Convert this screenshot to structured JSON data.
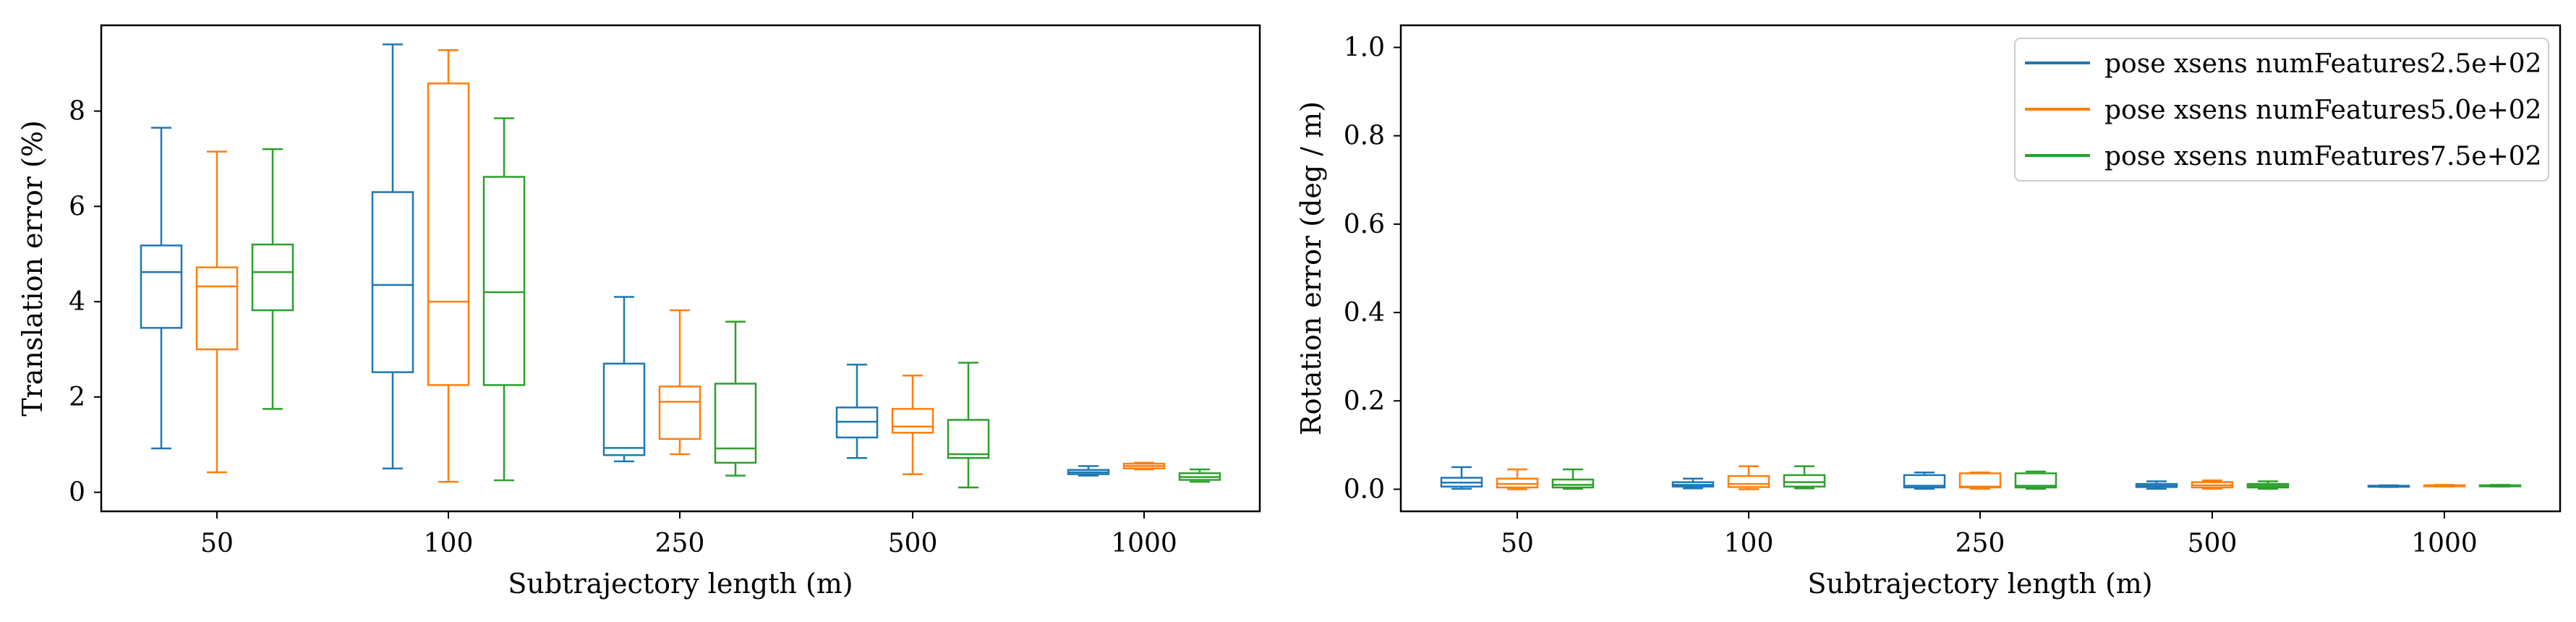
{
  "chart_data": [
    {
      "type": "box",
      "title": "",
      "xlabel": "Subtrajectory length (m)",
      "ylabel": "Translation error (%)",
      "categories": [
        "50",
        "100",
        "250",
        "500",
        "1000"
      ],
      "ylim": [
        -0.4,
        9.8
      ],
      "yticks": [
        0,
        2,
        4,
        6,
        8
      ],
      "grid": false,
      "series": [
        {
          "name": "pose xsens numFeatures2.5e+02",
          "color": "#1f77b4",
          "boxes": [
            {
              "whislo": 0.92,
              "q1": 3.45,
              "med": 4.62,
              "q3": 5.18,
              "whishi": 7.65
            },
            {
              "whislo": 0.5,
              "q1": 2.52,
              "med": 4.35,
              "q3": 6.3,
              "whishi": 9.4
            },
            {
              "whislo": 0.65,
              "q1": 0.78,
              "med": 0.93,
              "q3": 2.7,
              "whishi": 4.1
            },
            {
              "whislo": 0.72,
              "q1": 1.15,
              "med": 1.48,
              "q3": 1.78,
              "whishi": 2.68
            },
            {
              "whislo": 0.35,
              "q1": 0.38,
              "med": 0.42,
              "q3": 0.47,
              "whishi": 0.55
            }
          ]
        },
        {
          "name": "pose xsens numFeatures5.0e+02",
          "color": "#ff7f0e",
          "boxes": [
            {
              "whislo": 0.42,
              "q1": 3.0,
              "med": 4.32,
              "q3": 4.72,
              "whishi": 7.15
            },
            {
              "whislo": 0.22,
              "q1": 2.25,
              "med": 4.0,
              "q3": 8.58,
              "whishi": 9.28
            },
            {
              "whislo": 0.8,
              "q1": 1.12,
              "med": 1.9,
              "q3": 2.22,
              "whishi": 3.82
            },
            {
              "whislo": 0.38,
              "q1": 1.25,
              "med": 1.38,
              "q3": 1.75,
              "whishi": 2.45
            },
            {
              "whislo": 0.48,
              "q1": 0.5,
              "med": 0.55,
              "q3": 0.6,
              "whishi": 0.62
            }
          ]
        },
        {
          "name": "pose xsens numFeatures7.5e+02",
          "color": "#2ca02c",
          "boxes": [
            {
              "whislo": 1.75,
              "q1": 3.82,
              "med": 4.62,
              "q3": 5.2,
              "whishi": 7.2
            },
            {
              "whislo": 0.25,
              "q1": 2.25,
              "med": 4.2,
              "q3": 6.62,
              "whishi": 7.85
            },
            {
              "whislo": 0.35,
              "q1": 0.62,
              "med": 0.92,
              "q3": 2.28,
              "whishi": 3.58
            },
            {
              "whislo": 0.1,
              "q1": 0.72,
              "med": 0.8,
              "q3": 1.52,
              "whishi": 2.72
            },
            {
              "whislo": 0.22,
              "q1": 0.26,
              "med": 0.32,
              "q3": 0.4,
              "whishi": 0.48
            }
          ]
        }
      ]
    },
    {
      "type": "box",
      "title": "",
      "xlabel": "Subtrajectory length (m)",
      "ylabel": "Rotation error (deg / m)",
      "categories": [
        "50",
        "100",
        "250",
        "500",
        "1000"
      ],
      "ylim": [
        -0.05,
        1.05
      ],
      "yticks": [
        0.0,
        0.2,
        0.4,
        0.6,
        0.8,
        1.0
      ],
      "ytick_labels": [
        "0.0",
        "0.2",
        "0.4",
        "0.6",
        "0.8",
        "1.0"
      ],
      "grid": false,
      "legend_position": "top-right",
      "series": [
        {
          "name": "pose xsens numFeatures2.5e+02",
          "color": "#1f77b4",
          "boxes": [
            {
              "whislo": 0.001,
              "q1": 0.006,
              "med": 0.015,
              "q3": 0.026,
              "whishi": 0.05
            },
            {
              "whislo": 0.002,
              "q1": 0.006,
              "med": 0.01,
              "q3": 0.016,
              "whishi": 0.024
            },
            {
              "whislo": 0.001,
              "q1": 0.004,
              "med": 0.008,
              "q3": 0.032,
              "whishi": 0.038
            },
            {
              "whislo": 0.001,
              "q1": 0.005,
              "med": 0.008,
              "q3": 0.012,
              "whishi": 0.018
            },
            {
              "whislo": 0.005,
              "q1": 0.006,
              "med": 0.007,
              "q3": 0.008,
              "whishi": 0.009
            }
          ]
        },
        {
          "name": "pose xsens numFeatures5.0e+02",
          "color": "#ff7f0e",
          "boxes": [
            {
              "whislo": 0.0,
              "q1": 0.004,
              "med": 0.012,
              "q3": 0.024,
              "whishi": 0.045
            },
            {
              "whislo": 0.0,
              "q1": 0.005,
              "med": 0.012,
              "q3": 0.03,
              "whishi": 0.052
            },
            {
              "whislo": 0.001,
              "q1": 0.004,
              "med": 0.006,
              "q3": 0.036,
              "whishi": 0.038
            },
            {
              "whislo": 0.001,
              "q1": 0.004,
              "med": 0.009,
              "q3": 0.016,
              "whishi": 0.02
            },
            {
              "whislo": 0.006,
              "q1": 0.007,
              "med": 0.008,
              "q3": 0.009,
              "whishi": 0.01
            }
          ]
        },
        {
          "name": "pose xsens numFeatures7.5e+02",
          "color": "#2ca02c",
          "boxes": [
            {
              "whislo": 0.001,
              "q1": 0.004,
              "med": 0.01,
              "q3": 0.022,
              "whishi": 0.045
            },
            {
              "whislo": 0.002,
              "q1": 0.006,
              "med": 0.016,
              "q3": 0.032,
              "whishi": 0.052
            },
            {
              "whislo": 0.001,
              "q1": 0.004,
              "med": 0.008,
              "q3": 0.036,
              "whishi": 0.04
            },
            {
              "whislo": 0.001,
              "q1": 0.004,
              "med": 0.008,
              "q3": 0.012,
              "whishi": 0.018
            },
            {
              "whislo": 0.006,
              "q1": 0.007,
              "med": 0.008,
              "q3": 0.009,
              "whishi": 0.01
            }
          ]
        }
      ]
    }
  ]
}
